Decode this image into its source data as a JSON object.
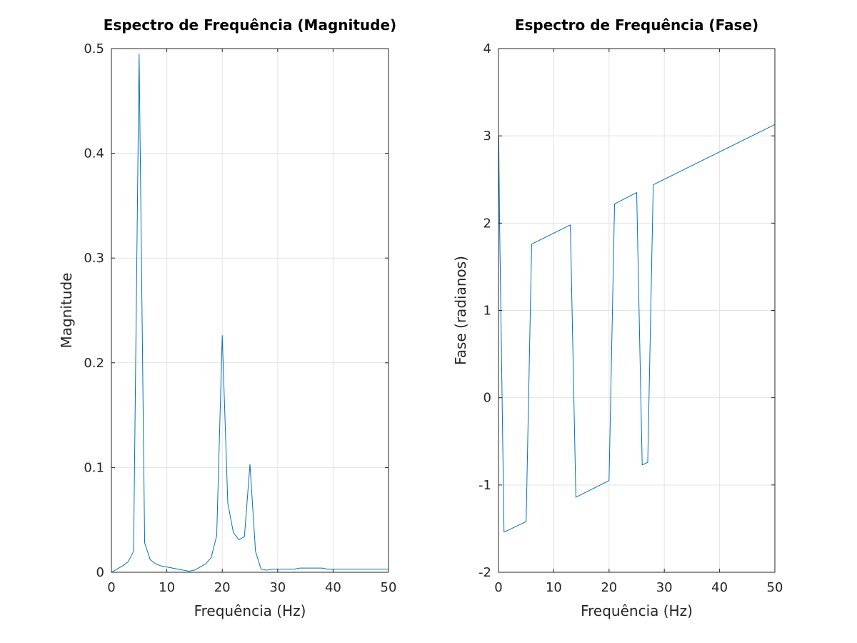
{
  "chart_data": [
    {
      "type": "line",
      "title": "Espectro de Frequência (Magnitude)",
      "xlabel": "Frequência (Hz)",
      "ylabel": "Magnitude",
      "xlim": [
        0,
        50
      ],
      "ylim": [
        0,
        0.5
      ],
      "xticks": [
        0,
        10,
        20,
        30,
        40,
        50
      ],
      "yticks": [
        0,
        0.1,
        0.2,
        0.3,
        0.4,
        0.5
      ],
      "xtick_labels": [
        "0",
        "10",
        "20",
        "30",
        "40",
        "50"
      ],
      "ytick_labels": [
        "0",
        "0.1",
        "0.2",
        "0.3",
        "0.4",
        "0.5"
      ],
      "grid": true,
      "line_color": "#0072bd",
      "series": [
        {
          "x": [
            0,
            1,
            2,
            3,
            4,
            5,
            6,
            7,
            8,
            9,
            10,
            11,
            12,
            13,
            14,
            15,
            16,
            17,
            18,
            19,
            20,
            21,
            22,
            23,
            24,
            25,
            26,
            27,
            28,
            29,
            30,
            31,
            32,
            33,
            34,
            35,
            36,
            37,
            38,
            39,
            40,
            41,
            42,
            43,
            44,
            45,
            46,
            47,
            48,
            49,
            50
          ],
          "values": [
            0.0,
            0.003,
            0.006,
            0.01,
            0.02,
            0.495,
            0.028,
            0.012,
            0.008,
            0.006,
            0.005,
            0.004,
            0.003,
            0.002,
            0.001,
            0.002,
            0.005,
            0.008,
            0.014,
            0.035,
            0.226,
            0.066,
            0.038,
            0.031,
            0.034,
            0.103,
            0.02,
            0.003,
            0.002,
            0.003,
            0.003,
            0.003,
            0.003,
            0.003,
            0.004,
            0.004,
            0.004,
            0.004,
            0.004,
            0.003,
            0.003,
            0.003,
            0.003,
            0.003,
            0.003,
            0.003,
            0.003,
            0.003,
            0.003,
            0.003,
            0.003
          ]
        }
      ]
    },
    {
      "type": "line",
      "title": "Espectro de Frequência (Fase)",
      "xlabel": "Frequência (Hz)",
      "ylabel": "Fase (radianos)",
      "xlim": [
        0,
        50
      ],
      "ylim": [
        -2,
        4
      ],
      "xticks": [
        0,
        10,
        20,
        30,
        40,
        50
      ],
      "yticks": [
        -2,
        -1,
        0,
        1,
        2,
        3,
        4
      ],
      "xtick_labels": [
        "0",
        "10",
        "20",
        "30",
        "40",
        "50"
      ],
      "ytick_labels": [
        "-2",
        "-1",
        "0",
        "1",
        "2",
        "3",
        "4"
      ],
      "grid": true,
      "line_color": "#0072bd",
      "series": [
        {
          "x": [
            0,
            0.05,
            0.1,
            0.2,
            1,
            5,
            6,
            13,
            14,
            20,
            21,
            25,
            26,
            27,
            28,
            50
          ],
          "values": [
            2.3,
            3.0,
            2.63,
            2.0,
            -1.54,
            -1.42,
            1.76,
            1.98,
            -1.14,
            -0.95,
            2.22,
            2.35,
            -0.77,
            -0.74,
            2.44,
            3.13
          ]
        }
      ]
    }
  ]
}
